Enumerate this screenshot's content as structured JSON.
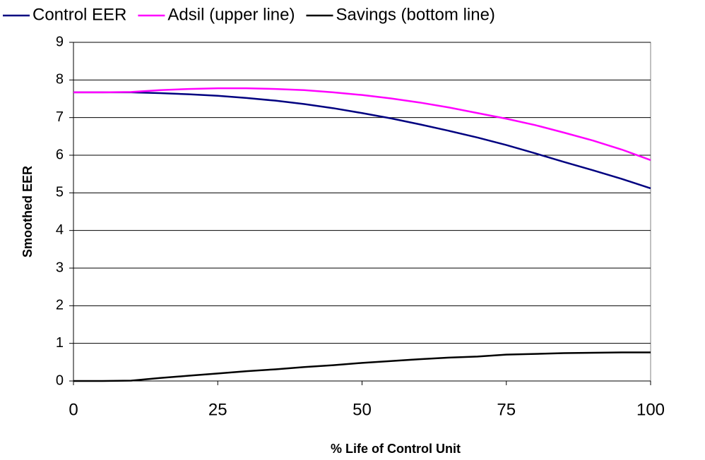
{
  "chart_data": {
    "type": "line",
    "x": [
      0,
      5,
      10,
      15,
      20,
      25,
      30,
      35,
      40,
      45,
      50,
      55,
      60,
      65,
      70,
      75,
      80,
      85,
      90,
      95,
      100
    ],
    "series": [
      {
        "name": "Control EER",
        "color": "#000080",
        "values": [
          7.67,
          7.67,
          7.67,
          7.65,
          7.62,
          7.58,
          7.52,
          7.45,
          7.36,
          7.25,
          7.12,
          6.98,
          6.82,
          6.65,
          6.47,
          6.27,
          6.05,
          5.82,
          5.6,
          5.37,
          5.12
        ]
      },
      {
        "name": "Adsil (upper line)",
        "color": "#ff00ff",
        "values": [
          7.67,
          7.67,
          7.68,
          7.73,
          7.76,
          7.78,
          7.78,
          7.76,
          7.73,
          7.67,
          7.6,
          7.51,
          7.4,
          7.27,
          7.12,
          6.97,
          6.8,
          6.6,
          6.39,
          6.15,
          5.87
        ]
      },
      {
        "name": "Savings (bottom line)",
        "color": "#000000",
        "values": [
          0,
          0,
          0.01,
          0.08,
          0.14,
          0.2,
          0.26,
          0.31,
          0.37,
          0.42,
          0.48,
          0.53,
          0.58,
          0.62,
          0.65,
          0.7,
          0.72,
          0.74,
          0.75,
          0.76,
          0.76
        ]
      }
    ],
    "xlabel": "% Life of Control Unit",
    "ylabel": "Smoothed EER",
    "xlim": [
      0,
      100
    ],
    "xticks": [
      0,
      25,
      50,
      75,
      100
    ],
    "ylim": [
      0,
      9
    ],
    "yticks": [
      0,
      1,
      2,
      3,
      4,
      5,
      6,
      7,
      8,
      9
    ],
    "grid": true,
    "legend": "top"
  }
}
